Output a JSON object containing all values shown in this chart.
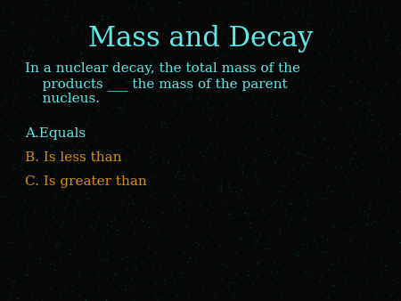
{
  "title": "Mass and Decay",
  "title_color": "#5EEAE8",
  "title_fontsize": 22,
  "background_color": "#060808",
  "question_line1": "In a nuclear decay, the total mass of the",
  "question_line2": "    products ___ the mass of the parent",
  "question_line3": "    nucleus.",
  "question_color": "#5EEAE8",
  "question_fontsize": 11,
  "options": [
    {
      "label": "A.",
      "text": "Equals",
      "color": "#5EEAE8"
    },
    {
      "label": "B. ",
      "text": "Is less than",
      "color": "#D4920A"
    },
    {
      "label": "C. ",
      "text": "Is greater than",
      "color": "#D4920A"
    }
  ],
  "options_fontsize": 11,
  "dot_color_red": "#3a0808",
  "dot_color_teal": "#083a2a"
}
